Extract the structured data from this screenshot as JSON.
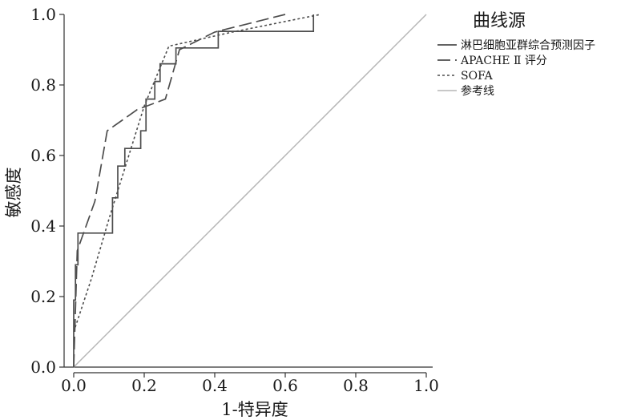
{
  "chart_data": {
    "type": "line",
    "title": "",
    "xlabel": "1-特异度",
    "ylabel": "敏感度",
    "xlim": [
      0,
      1
    ],
    "ylim": [
      0,
      1
    ],
    "x_ticks": [
      "0.0",
      "0.2",
      "0.4",
      "0.6",
      "0.8",
      "1.0"
    ],
    "y_ticks": [
      "0.0",
      "0.2",
      "0.4",
      "0.6",
      "0.8",
      "1.0"
    ],
    "grid": false,
    "legend": {
      "title": "曲线源",
      "position": "top-right"
    },
    "series": [
      {
        "name": "淋巴细胞亚群综合预测因子",
        "style": "solid",
        "color": "#4d4d4d",
        "points": [
          [
            0.0,
            0.0
          ],
          [
            0.0,
            0.19
          ],
          [
            0.005,
            0.19
          ],
          [
            0.005,
            0.29
          ],
          [
            0.012,
            0.29
          ],
          [
            0.012,
            0.38
          ],
          [
            0.11,
            0.38
          ],
          [
            0.11,
            0.48
          ],
          [
            0.125,
            0.48
          ],
          [
            0.125,
            0.57
          ],
          [
            0.145,
            0.57
          ],
          [
            0.145,
            0.62
          ],
          [
            0.19,
            0.62
          ],
          [
            0.19,
            0.67
          ],
          [
            0.205,
            0.67
          ],
          [
            0.205,
            0.76
          ],
          [
            0.23,
            0.76
          ],
          [
            0.23,
            0.81
          ],
          [
            0.245,
            0.81
          ],
          [
            0.245,
            0.86
          ],
          [
            0.29,
            0.86
          ],
          [
            0.29,
            0.905
          ],
          [
            0.41,
            0.905
          ],
          [
            0.41,
            0.952
          ],
          [
            0.68,
            0.952
          ],
          [
            0.68,
            1.0
          ]
        ]
      },
      {
        "name": "APACHE Ⅱ 评分",
        "style": "dashed",
        "color": "#4d4d4d",
        "points": [
          [
            0.0,
            0.0
          ],
          [
            0.01,
            0.33
          ],
          [
            0.06,
            0.47
          ],
          [
            0.095,
            0.67
          ],
          [
            0.18,
            0.73
          ],
          [
            0.26,
            0.76
          ],
          [
            0.3,
            0.9
          ],
          [
            0.4,
            0.95
          ],
          [
            0.6,
            1.0
          ]
        ]
      },
      {
        "name": "SOFA",
        "style": "dotted",
        "color": "#4d4d4d",
        "points": [
          [
            0.0,
            0.1
          ],
          [
            0.05,
            0.25
          ],
          [
            0.1,
            0.42
          ],
          [
            0.15,
            0.58
          ],
          [
            0.2,
            0.74
          ],
          [
            0.27,
            0.91
          ],
          [
            0.45,
            0.95
          ],
          [
            0.65,
            0.99
          ],
          [
            0.7,
            1.0
          ]
        ]
      },
      {
        "name": "参考线",
        "style": "solid",
        "color": "#b5b5b5",
        "points": [
          [
            0.0,
            0.0
          ],
          [
            1.0,
            1.0
          ]
        ]
      }
    ]
  }
}
